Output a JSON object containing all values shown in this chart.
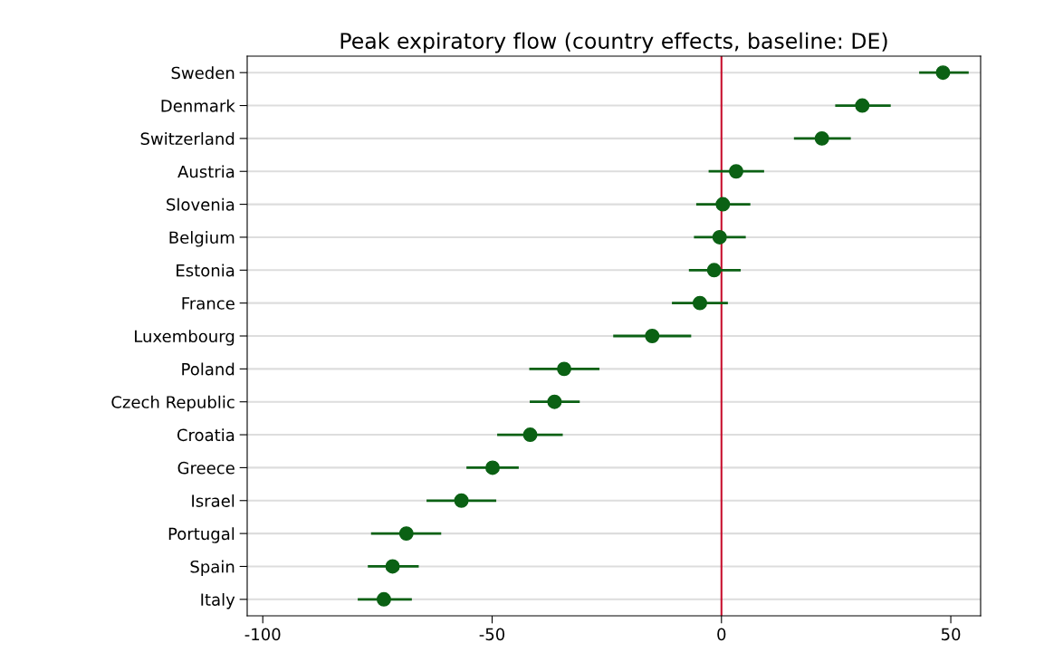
{
  "chart_data": {
    "type": "scatter",
    "orientation": "horizontal",
    "title": "Peak expiratory flow (country effects, baseline: DE)",
    "categories": [
      "Sweden",
      "Denmark",
      "Switzerland",
      "Austria",
      "Slovenia",
      "Belgium",
      "Estonia",
      "France",
      "Luxembourg",
      "Poland",
      "Czech Republic",
      "Croatia",
      "Greece",
      "Israel",
      "Portugal",
      "Spain",
      "Italy"
    ],
    "series": [
      {
        "color": "#0b6114",
        "values": [
          48.3,
          30.7,
          21.9,
          3.2,
          0.3,
          -0.4,
          -1.6,
          -4.7,
          -15.1,
          -34.3,
          -36.4,
          -41.7,
          -49.9,
          -56.7,
          -68.7,
          -71.7,
          -73.6
        ],
        "errors": [
          [
            43.1,
            53.9
          ],
          [
            24.8,
            36.9
          ],
          [
            15.8,
            28.2
          ],
          [
            -2.8,
            9.3
          ],
          [
            -5.5,
            6.3
          ],
          [
            -6.0,
            5.3
          ],
          [
            -7.1,
            4.2
          ],
          [
            -10.8,
            1.4
          ],
          [
            -23.6,
            -6.6
          ],
          [
            -41.9,
            -26.6
          ],
          [
            -41.8,
            -30.9
          ],
          [
            -48.9,
            -34.6
          ],
          [
            -55.6,
            -44.2
          ],
          [
            -64.3,
            -49.1
          ],
          [
            -76.4,
            -61.1
          ],
          [
            -77.1,
            -66.0
          ],
          [
            -79.3,
            -67.5
          ]
        ]
      }
    ],
    "xlim": [
      -103.4,
      56.5
    ],
    "xticks": [
      -100,
      -50,
      0,
      50
    ],
    "ref_lines": [
      {
        "axis": "x",
        "value": 0,
        "color": "#c8102e"
      }
    ],
    "grid": "y",
    "marker": "circle"
  }
}
